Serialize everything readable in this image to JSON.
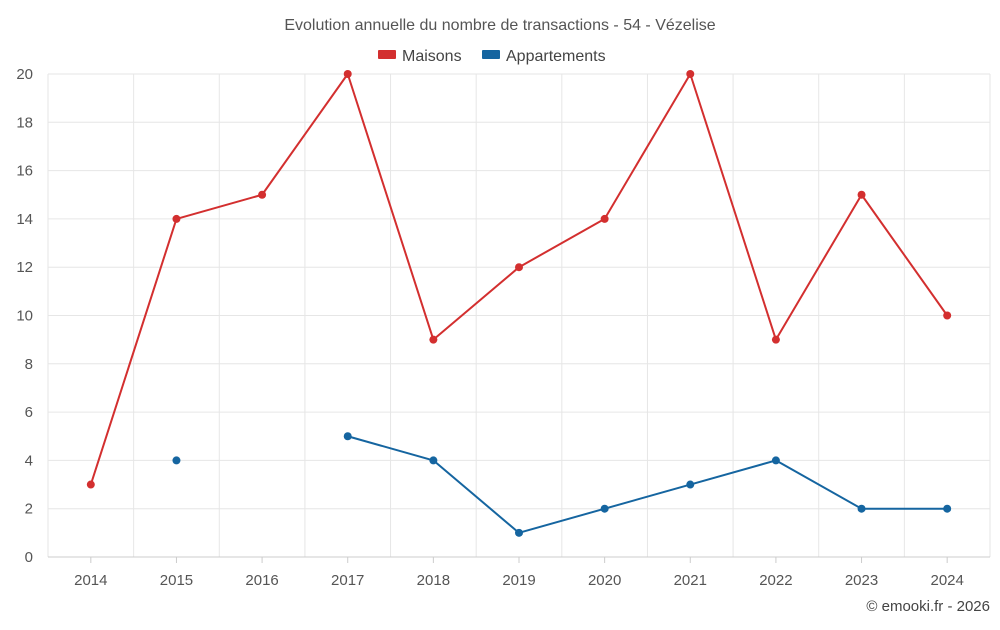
{
  "chart_data": {
    "type": "line",
    "title": "Evolution annuelle du nombre de transactions - 54 - Vézelise",
    "categories": [
      "2014",
      "2015",
      "2016",
      "2017",
      "2018",
      "2019",
      "2020",
      "2021",
      "2022",
      "2023",
      "2024"
    ],
    "series": [
      {
        "name": "Maisons",
        "color": "#d32f2f",
        "values": [
          3,
          14,
          15,
          20,
          9,
          12,
          14,
          20,
          9,
          15,
          10
        ]
      },
      {
        "name": "Appartements",
        "color": "#1565a0",
        "values": [
          null,
          4,
          null,
          5,
          4,
          1,
          2,
          3,
          4,
          2,
          2
        ]
      }
    ],
    "ylim": [
      0,
      20
    ],
    "yticks": [
      "0",
      "2",
      "4",
      "6",
      "8",
      "10",
      "12",
      "14",
      "16",
      "18",
      "20"
    ],
    "xlabel": "",
    "ylabel": "",
    "grid": true,
    "legend_position": "top-center"
  },
  "credit": "© emooki.fr - 2026"
}
